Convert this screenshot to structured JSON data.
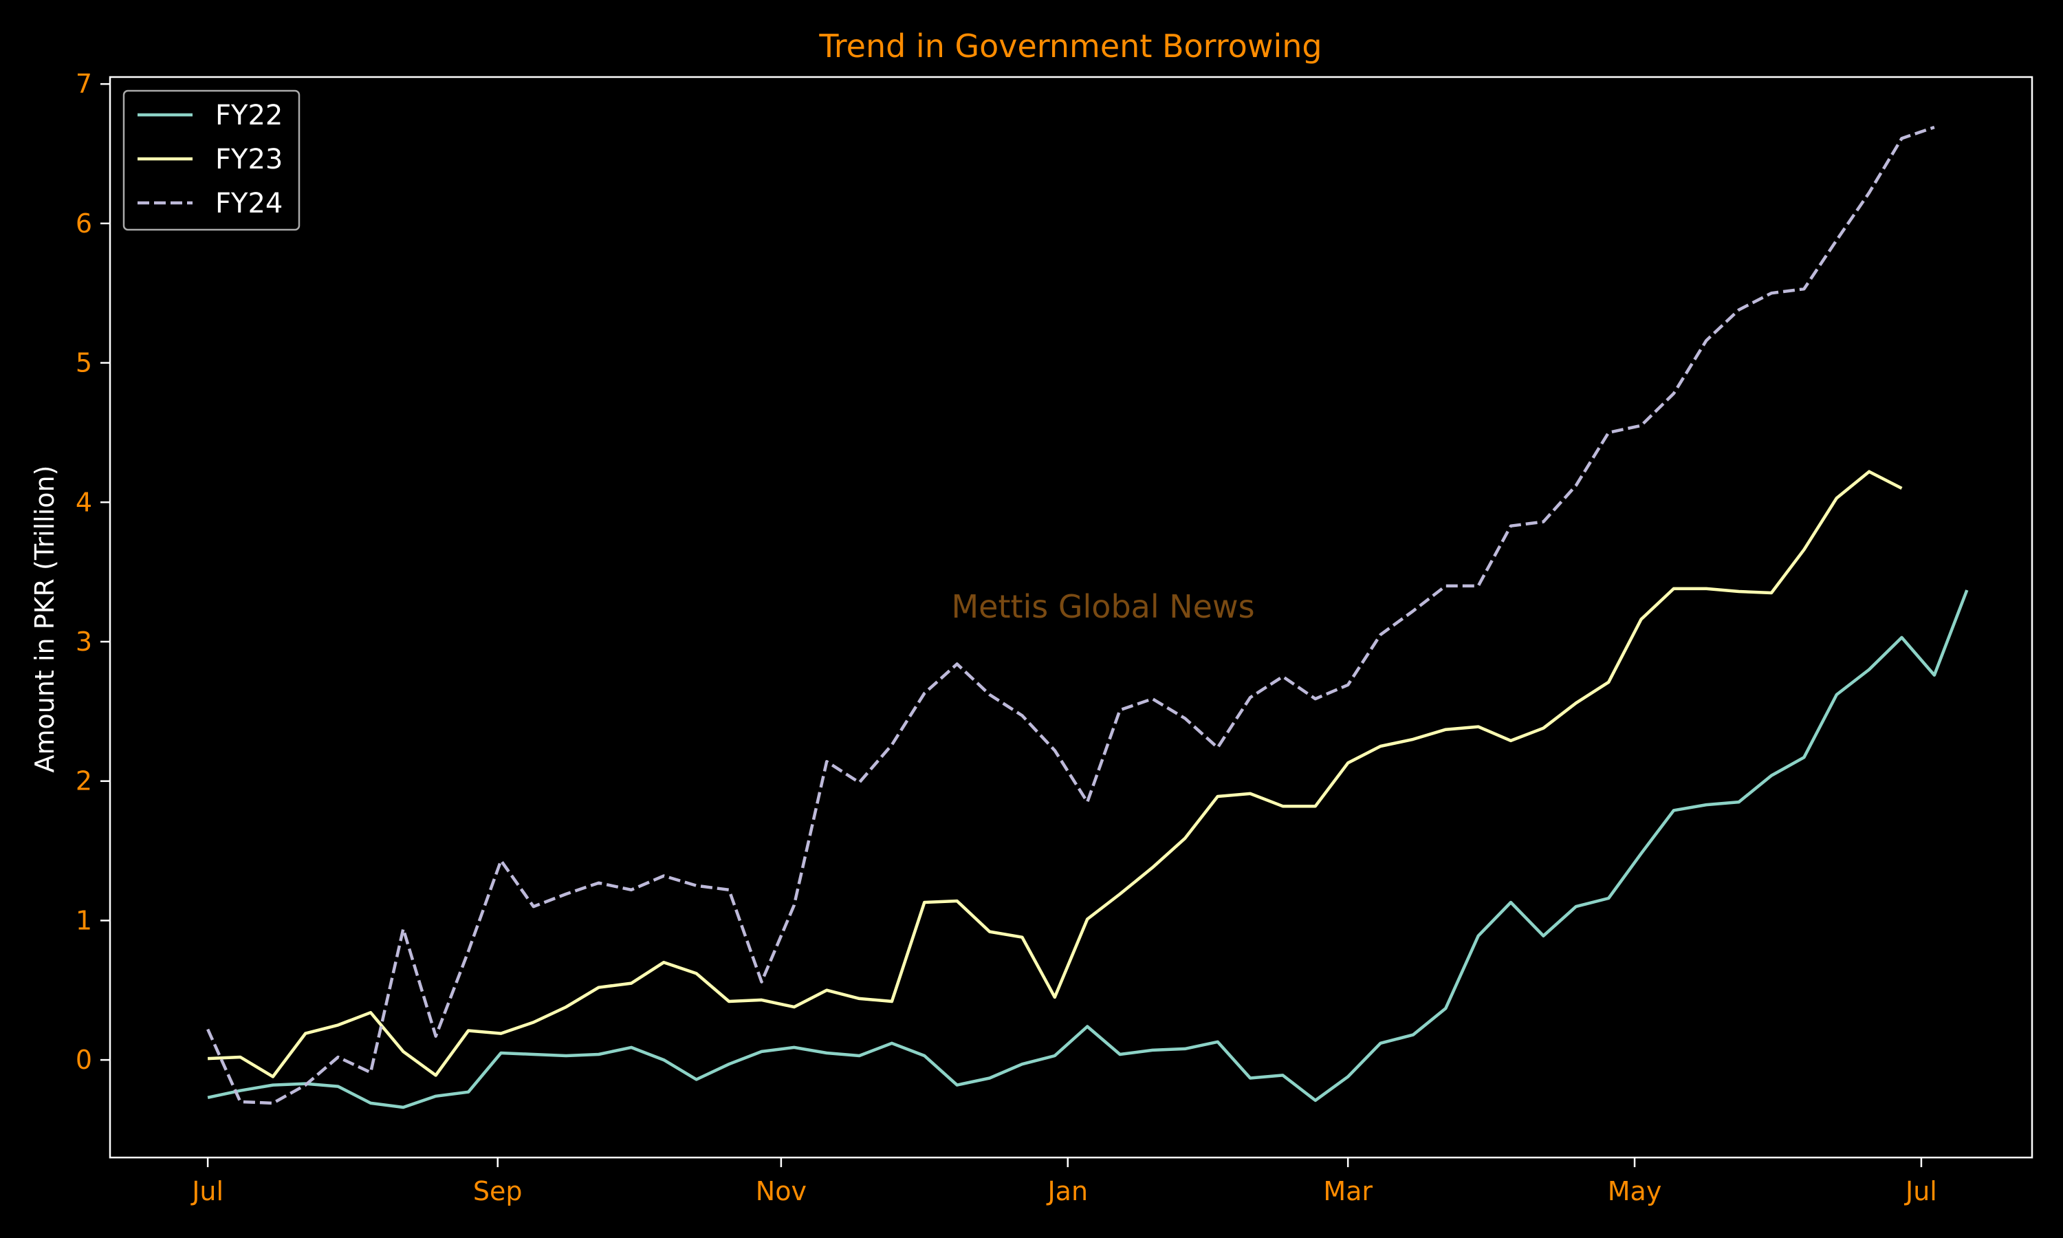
{
  "chart_data": {
    "type": "line",
    "title": "Trend in Government Borrowing",
    "xlabel": "",
    "ylabel": "Amount in PKR (Trillion)",
    "watermark": "Mettis Global News",
    "x_tick_labels": [
      "Jul",
      "Sep",
      "Nov",
      "Jan",
      "Mar",
      "May",
      "Jul"
    ],
    "y_ticks": [
      0,
      1,
      2,
      3,
      4,
      5,
      6,
      7
    ],
    "ylim": [
      -0.7,
      7.05
    ],
    "xlim": [
      -3,
      56
    ],
    "x_tick_positions": [
      0,
      8.9,
      17.6,
      26.4,
      35,
      43.8,
      52.6
    ],
    "grid": false,
    "legend_position": "top-left",
    "colors": {
      "background": "#000000",
      "tick_text": "#ff8c00",
      "title_text": "#ff8c00",
      "axis_label": "#ffffff",
      "frame": "#ffffff",
      "watermark": "#7a4a12",
      "legend_text": "#ffffff",
      "legend_border": "#aaaaaa"
    },
    "series": [
      {
        "name": "FY22",
        "color": "#8dd3c7",
        "dashed": false,
        "values": [
          -0.27,
          -0.22,
          -0.18,
          -0.17,
          -0.19,
          -0.31,
          -0.34,
          -0.26,
          -0.23,
          0.05,
          0.04,
          0.03,
          0.04,
          0.09,
          0.0,
          -0.14,
          -0.03,
          0.06,
          0.09,
          0.05,
          0.03,
          0.12,
          0.03,
          -0.18,
          -0.13,
          -0.03,
          0.03,
          0.24,
          0.04,
          0.07,
          0.08,
          0.13,
          -0.13,
          -0.11,
          -0.29,
          -0.12,
          0.12,
          0.18,
          0.37,
          0.89,
          1.13,
          0.89,
          1.1,
          1.16,
          1.48,
          1.79,
          1.83,
          1.85,
          2.04,
          2.17,
          2.62,
          2.8,
          3.03,
          2.76,
          3.37
        ]
      },
      {
        "name": "FY23",
        "color": "#ffffb3",
        "dashed": false,
        "values": [
          0.01,
          0.02,
          -0.12,
          0.19,
          0.25,
          0.34,
          0.06,
          -0.11,
          0.21,
          0.19,
          0.27,
          0.38,
          0.52,
          0.55,
          0.7,
          0.62,
          0.42,
          0.43,
          0.38,
          0.5,
          0.44,
          0.42,
          1.13,
          1.14,
          0.92,
          0.88,
          0.45,
          1.01,
          1.19,
          1.38,
          1.59,
          1.89,
          1.91,
          1.82,
          1.82,
          2.13,
          2.25,
          2.3,
          2.37,
          2.39,
          2.29,
          2.38,
          2.56,
          2.71,
          3.16,
          3.38,
          3.38,
          3.36,
          3.35,
          3.66,
          4.03,
          4.22,
          4.1
        ]
      },
      {
        "name": "FY24",
        "color": "#bebada",
        "dashed": true,
        "values": [
          0.22,
          -0.3,
          -0.31,
          -0.18,
          0.02,
          -0.09,
          0.94,
          0.17,
          0.78,
          1.43,
          1.1,
          1.19,
          1.27,
          1.22,
          1.32,
          1.25,
          1.22,
          0.56,
          1.11,
          2.14,
          1.99,
          2.26,
          2.63,
          2.84,
          2.62,
          2.47,
          2.22,
          1.85,
          2.51,
          2.59,
          2.45,
          2.24,
          2.6,
          2.75,
          2.59,
          2.69,
          3.05,
          3.22,
          3.4,
          3.4,
          3.83,
          3.86,
          4.12,
          4.5,
          4.55,
          4.78,
          5.16,
          5.38,
          5.5,
          5.53,
          5.88,
          6.22,
          6.61,
          6.69
        ]
      }
    ]
  }
}
